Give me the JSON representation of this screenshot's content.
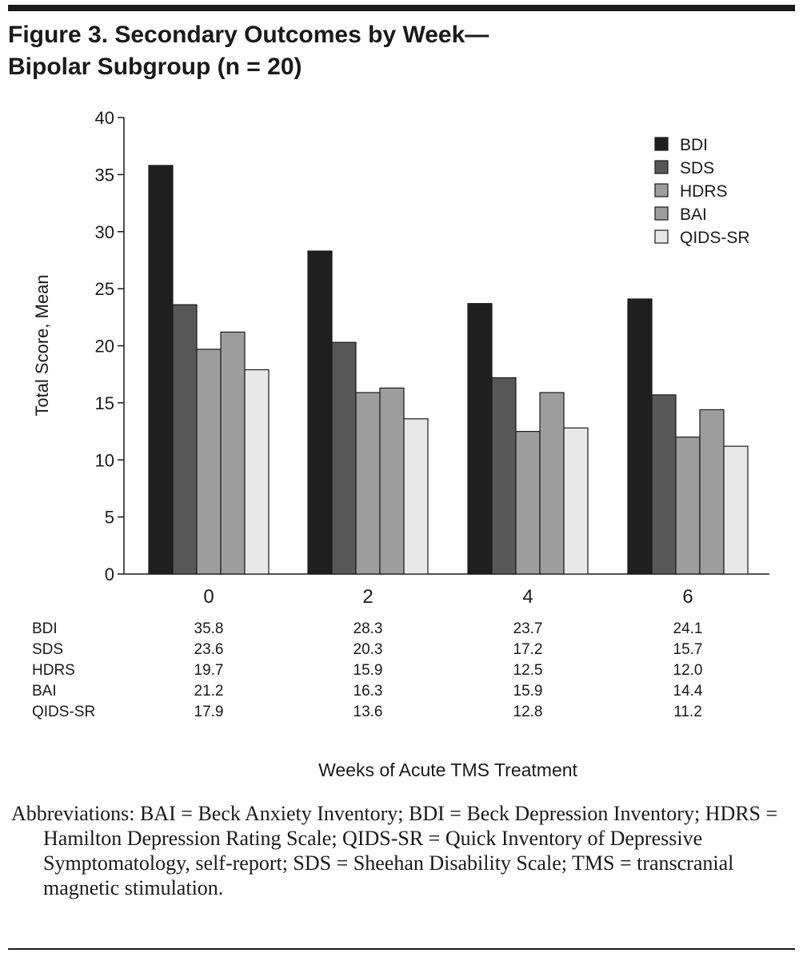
{
  "title_line1": "Figure 3. Secondary Outcomes by Week—",
  "title_line2": "Bipolar Subgroup (n = 20)",
  "chart_data": {
    "type": "bar",
    "categories": [
      "0",
      "2",
      "4",
      "6"
    ],
    "xlabel": "Weeks of Acute TMS Treatment",
    "ylabel": "Total Score, Mean",
    "ylim": [
      0,
      40
    ],
    "yticks": [
      "0",
      "5",
      "10",
      "15",
      "20",
      "25",
      "30",
      "35",
      "40"
    ],
    "legend_position": "top-right",
    "grid": false,
    "series": [
      {
        "name": "BDI",
        "color": "#1f1f1f",
        "values": [
          35.8,
          28.3,
          23.7,
          24.1
        ],
        "labels": [
          "35.8",
          "28.3",
          "23.7",
          "24.1"
        ]
      },
      {
        "name": "SDS",
        "color": "#575757",
        "values": [
          23.6,
          20.3,
          17.2,
          15.7
        ],
        "labels": [
          "23.6",
          "20.3",
          "17.2",
          "15.7"
        ]
      },
      {
        "name": "HDRS",
        "color": "#9d9d9d",
        "values": [
          19.7,
          15.9,
          12.5,
          12.0
        ],
        "labels": [
          "19.7",
          "15.9",
          "12.5",
          "12.0"
        ]
      },
      {
        "name": "BAI",
        "color": "#9d9d9d",
        "values": [
          21.2,
          16.3,
          15.9,
          14.4
        ],
        "labels": [
          "21.2",
          "16.3",
          "15.9",
          "14.4"
        ]
      },
      {
        "name": "QIDS-SR",
        "color": "#e8e8e8",
        "values": [
          17.9,
          13.6,
          12.8,
          11.2
        ],
        "labels": [
          "17.9",
          "13.6",
          "12.8",
          "11.2"
        ]
      }
    ]
  },
  "footnote": "Abbreviations: BAI = Beck Anxiety Inventory; BDI = Beck Depression Inventory; HDRS = Hamilton Depression Rating Scale; QIDS-SR = Quick Inventory of Depressive Symptomatology, self-report; SDS = Sheehan Disability Scale; TMS = transcranial magnetic stimulation."
}
